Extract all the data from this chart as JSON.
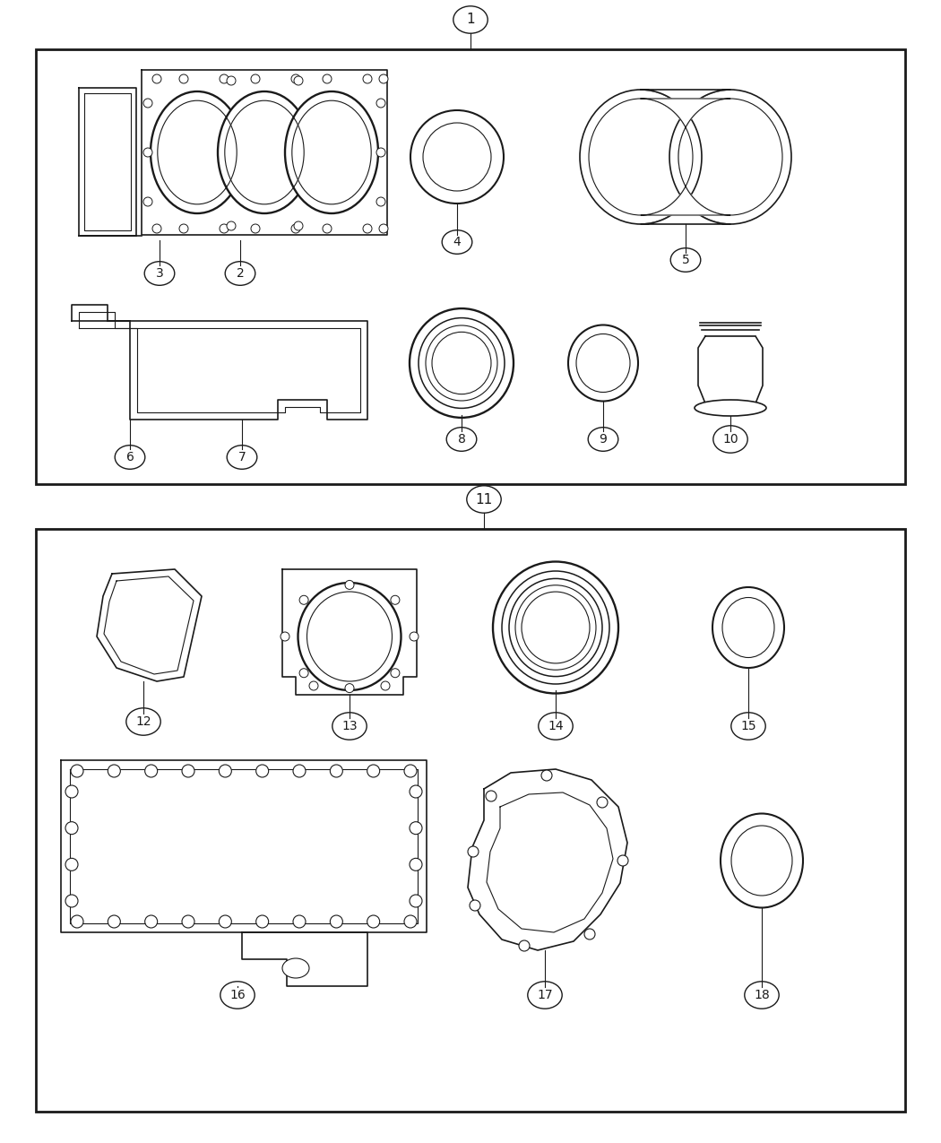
{
  "bg_color": "#ffffff",
  "line_color": "#1a1a1a",
  "figsize": [
    10.5,
    12.75
  ],
  "dpi": 100
}
